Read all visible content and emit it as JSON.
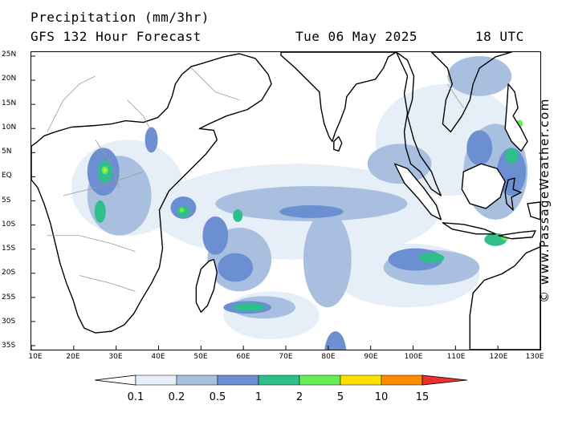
{
  "header": {
    "title": "Precipitation (mm/3hr)",
    "forecast": "GFS 132 Hour Forecast",
    "date": "Tue 06 May 2025",
    "time": "18 UTC"
  },
  "map": {
    "lat_labels": [
      "25N",
      "20N",
      "15N",
      "10N",
      "5N",
      "EQ",
      "5S",
      "10S",
      "15S",
      "20S",
      "25S",
      "30S",
      "35S"
    ],
    "lon_labels": [
      "10E",
      "20E",
      "30E",
      "40E",
      "50E",
      "60E",
      "70E",
      "80E",
      "90E",
      "100E",
      "110E",
      "120E",
      "130E"
    ],
    "extent": {
      "lon": [
        10,
        130
      ],
      "lat": [
        -35,
        25
      ]
    },
    "land_color": "#ffffff",
    "border_color": "#9a9a9a"
  },
  "legend": {
    "labels": [
      "0.1",
      "0.2",
      "0.5",
      "1",
      "2",
      "5",
      "10",
      "15"
    ],
    "colors": [
      "#ffffff",
      "#e6eef8",
      "#a9bfdf",
      "#6b8fd0",
      "#2fbf8a",
      "#66ee55",
      "#ffe000",
      "#ff8c00",
      "#ee3030"
    ]
  },
  "watermark": "© www.PassageWeather.com"
}
